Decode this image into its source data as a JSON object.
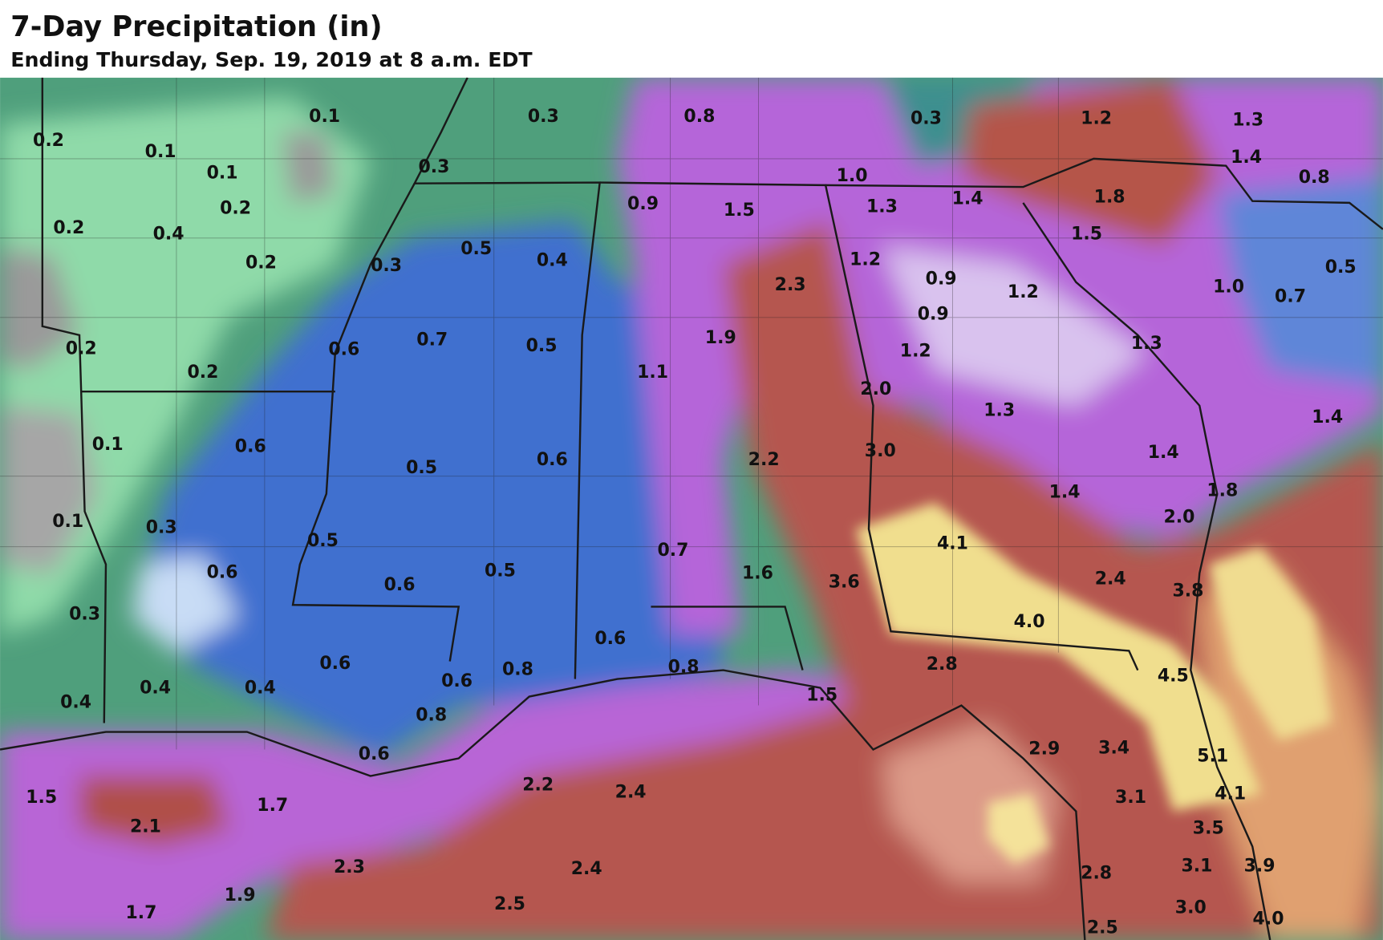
{
  "header": {
    "title": "7-Day Precipitation (in)",
    "subtitle": "Ending Thursday, Sep. 19, 2019 at 8 a.m. EDT"
  },
  "labels": [
    "0.1",
    "0.3",
    "0.8",
    "0.3",
    "1.2",
    "1.3",
    "0.2",
    "0.1",
    "0.1",
    "0.3",
    "1.4",
    "0.8",
    "1.0",
    "1.3",
    "1.4",
    "1.8",
    "0.9",
    "1.5",
    "0.2",
    "0.2",
    "0.4",
    "1.5",
    "0.2",
    "0.3",
    "0.5",
    "0.4",
    "1.2",
    "0.5",
    "2.3",
    "0.9",
    "1.2",
    "1.0",
    "0.7",
    "0.9",
    "0.2",
    "0.6",
    "0.7",
    "0.5",
    "1.9",
    "1.2",
    "1.3",
    "0.2",
    "1.1",
    "2.0",
    "1.3",
    "1.4",
    "0.1",
    "0.6",
    "0.5",
    "0.6",
    "2.2",
    "3.0",
    "1.4",
    "1.4",
    "1.8",
    "2.0",
    "0.1",
    "0.3",
    "0.5",
    "4.1",
    "0.7",
    "0.6",
    "0.6",
    "0.5",
    "1.6",
    "3.6",
    "2.4",
    "3.8",
    "0.3",
    "4.0",
    "0.6",
    "0.6",
    "0.6",
    "0.8",
    "0.8",
    "2.8",
    "4.5",
    "0.4",
    "0.4",
    "0.4",
    "1.5",
    "0.8",
    "0.6",
    "2.9",
    "3.4",
    "5.1",
    "1.5",
    "1.7",
    "2.2",
    "2.4",
    "3.1",
    "4.1",
    "2.1",
    "3.5",
    "2.3",
    "2.4",
    "2.8",
    "3.1",
    "3.9",
    "1.9",
    "2.5",
    "1.7",
    "3.0",
    "4.0",
    "2.5"
  ]
}
